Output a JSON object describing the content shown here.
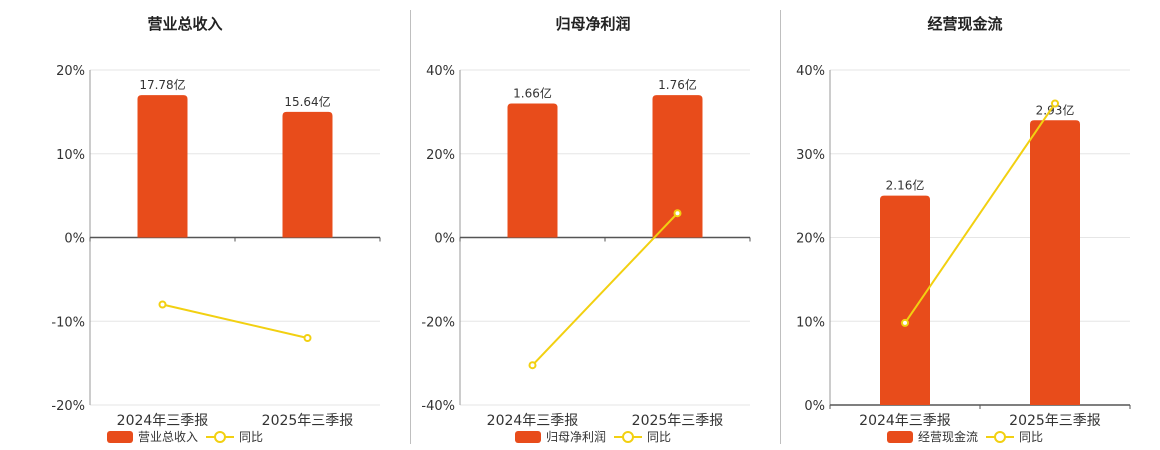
{
  "colors": {
    "bar": "#E84C1B",
    "line": "#F2D011",
    "axis": "#555555",
    "grid": "#e6e6e6",
    "text": "#333333"
  },
  "chart_data": [
    {
      "type": "bar",
      "title": "营业总收入",
      "categories": [
        "2024年三季报",
        "2025年三季报"
      ],
      "bar_labels": [
        "17.78亿",
        "15.64亿"
      ],
      "bar_values": [
        17.0,
        15.0
      ],
      "yoy": [
        -8.0,
        -12.0
      ],
      "ylim": [
        -20,
        20
      ],
      "ticks": [
        20,
        10,
        0,
        -10,
        -20
      ],
      "tick_labels": [
        "20%",
        "10%",
        "0%",
        "-10%",
        "-20%"
      ],
      "legend": [
        "营业总收入",
        "同比"
      ]
    },
    {
      "type": "bar",
      "title": "归母净利润",
      "categories": [
        "2024年三季报",
        "2025年三季报"
      ],
      "bar_labels": [
        "1.66亿",
        "1.76亿"
      ],
      "bar_values": [
        32.0,
        34.0
      ],
      "yoy": [
        -30.5,
        5.8
      ],
      "ylim": [
        -40,
        40
      ],
      "ticks": [
        40,
        20,
        0,
        -20,
        -40
      ],
      "tick_labels": [
        "40%",
        "20%",
        "0%",
        "-20%",
        "-40%"
      ],
      "legend": [
        "归母净利润",
        "同比"
      ]
    },
    {
      "type": "bar",
      "title": "经营现金流",
      "categories": [
        "2024年三季报",
        "2025年三季报"
      ],
      "bar_labels": [
        "2.16亿",
        "2.93亿"
      ],
      "bar_values": [
        25.0,
        34.0
      ],
      "yoy": [
        9.8,
        36.0
      ],
      "ylim": [
        0,
        40
      ],
      "ticks": [
        40,
        30,
        20,
        10,
        0
      ],
      "tick_labels": [
        "40%",
        "30%",
        "20%",
        "10%",
        "0%"
      ],
      "legend": [
        "经营现金流",
        "同比"
      ]
    }
  ]
}
